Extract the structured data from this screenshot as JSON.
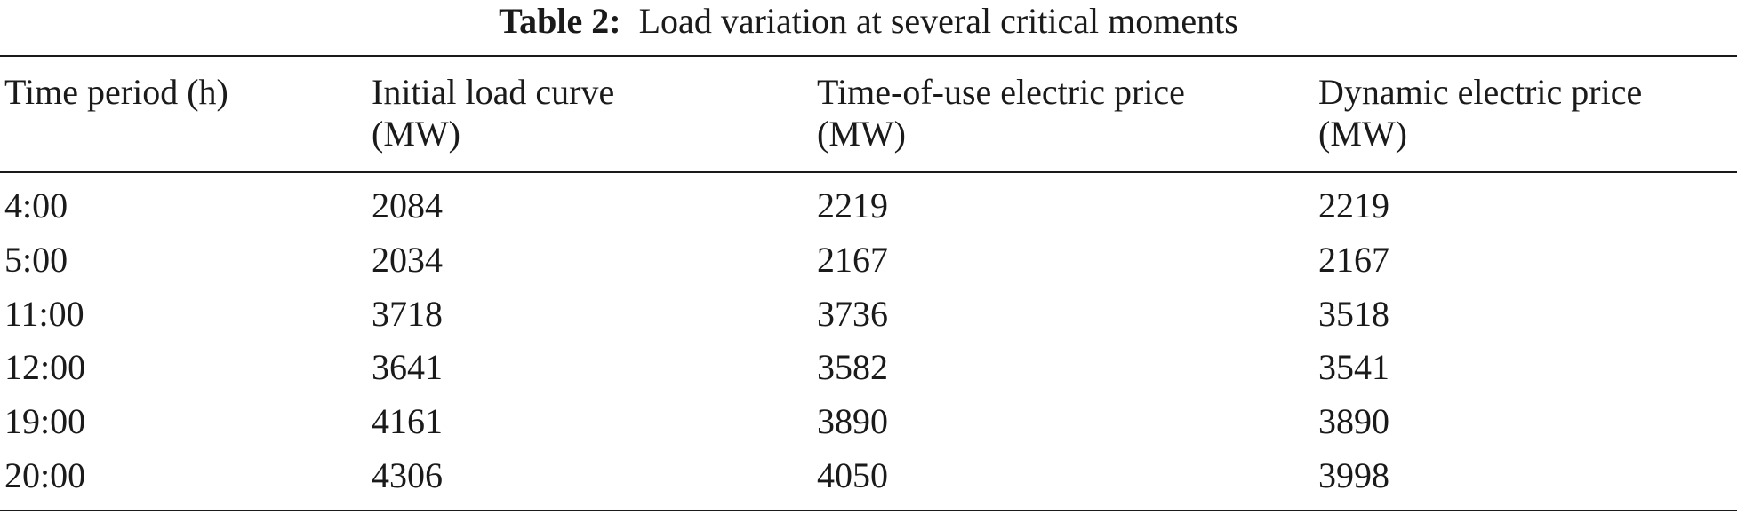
{
  "caption": {
    "label": "Table 2:",
    "text": "Load variation at several critical moments"
  },
  "table": {
    "headers": [
      {
        "line1": "Time period (h)",
        "line2": ""
      },
      {
        "line1": "Initial load curve",
        "line2": "(MW)"
      },
      {
        "line1": "Time-of-use electric price",
        "line2": "(MW)"
      },
      {
        "line1": "Dynamic electric price",
        "line2": "(MW)"
      }
    ],
    "rows": [
      [
        "4:00",
        "2084",
        "2219",
        "2219"
      ],
      [
        "5:00",
        "2034",
        "2167",
        "2167"
      ],
      [
        "11:00",
        "3718",
        "3736",
        "3518"
      ],
      [
        "12:00",
        "3641",
        "3582",
        "3541"
      ],
      [
        "19:00",
        "4161",
        "3890",
        "3890"
      ],
      [
        "20:00",
        "4306",
        "4050",
        "3998"
      ]
    ]
  }
}
